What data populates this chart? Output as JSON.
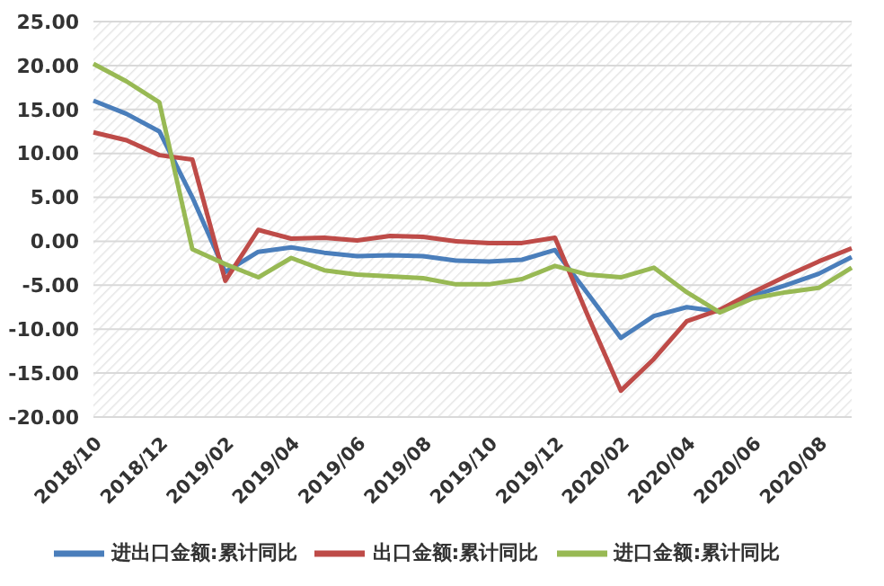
{
  "chart_data": {
    "type": "line",
    "categories": [
      "2018/10",
      null,
      "2018/12",
      null,
      "2019/02",
      null,
      "2019/04",
      null,
      "2019/06",
      null,
      "2019/08",
      null,
      "2019/10",
      null,
      "2019/12",
      null,
      "2020/02",
      null,
      "2020/04",
      null,
      "2020/06",
      null,
      "2020/08",
      null
    ],
    "series": [
      {
        "name": "进出口金额:累计同比",
        "color": "#4a7ebb",
        "values": [
          16,
          14.5,
          12.5,
          5,
          -3.5,
          -1.2,
          -0.7,
          -1.3,
          -1.7,
          -1.6,
          -1.7,
          -2.2,
          -2.3,
          -2.1,
          -1,
          -6,
          -11,
          -8.5,
          -7.5,
          -8,
          -6.2,
          -5,
          -3.7,
          -1.8
        ]
      },
      {
        "name": "出口金额:累计同比",
        "color": "#be4b48",
        "values": [
          12.4,
          11.5,
          9.8,
          9.3,
          -4.5,
          1.3,
          0.3,
          0.4,
          0.1,
          0.6,
          0.5,
          0,
          -0.2,
          -0.2,
          0.4,
          -8.5,
          -17,
          -13.4,
          -9.1,
          -7.8,
          -5.8,
          -4,
          -2.3,
          -0.8
        ]
      },
      {
        "name": "进口金额:累计同比",
        "color": "#98b954",
        "values": [
          20.2,
          18.2,
          15.8,
          -0.9,
          -2.6,
          -4.1,
          -1.9,
          -3.3,
          -3.8,
          -4,
          -4.2,
          -4.9,
          -4.9,
          -4.3,
          -2.8,
          -3.8,
          -4.1,
          -3,
          -5.8,
          -8.1,
          -6.5,
          -5.8,
          -5.3,
          -3
        ]
      }
    ],
    "ylim": [
      -20,
      25
    ],
    "yticks": [
      {
        "value": -20,
        "label": "-20.00"
      },
      {
        "value": -15,
        "label": "-15.00"
      },
      {
        "value": -10,
        "label": "-10.00"
      },
      {
        "value": -5,
        "label": "-5.00"
      },
      {
        "value": 0,
        "label": "0.00"
      },
      {
        "value": 5,
        "label": "5.00"
      },
      {
        "value": 10,
        "label": "10.00"
      },
      {
        "value": 15,
        "label": "15.00"
      },
      {
        "value": 20,
        "label": "20.00"
      },
      {
        "value": 25,
        "label": "25.00"
      }
    ],
    "grid": "y",
    "legend": "bottom",
    "marker": "none",
    "line_style": "solid"
  }
}
